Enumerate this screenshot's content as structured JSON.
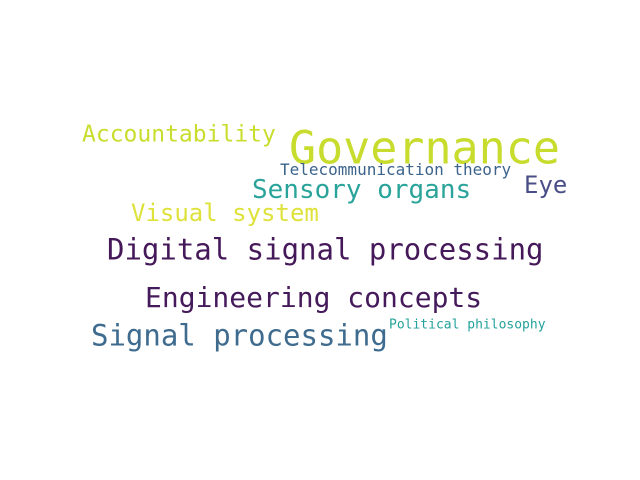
{
  "word_cloud": {
    "words": [
      {
        "text": "Governance",
        "color": "#c8dc2e"
      },
      {
        "text": "Accountability",
        "color": "#c9dd2f"
      },
      {
        "text": "Telecommunication theory",
        "color": "#3b638b"
      },
      {
        "text": "Sensory organs",
        "color": "#2aa49a"
      },
      {
        "text": "Eye",
        "color": "#4a4e86"
      },
      {
        "text": "Visual system",
        "color": "#dee23a"
      },
      {
        "text": "Digital signal processing",
        "color": "#451859"
      },
      {
        "text": "Engineering concepts",
        "color": "#451a5b"
      },
      {
        "text": "Signal processing",
        "color": "#3e6b8e"
      },
      {
        "text": "Political philosophy",
        "color": "#22a29a"
      }
    ]
  }
}
